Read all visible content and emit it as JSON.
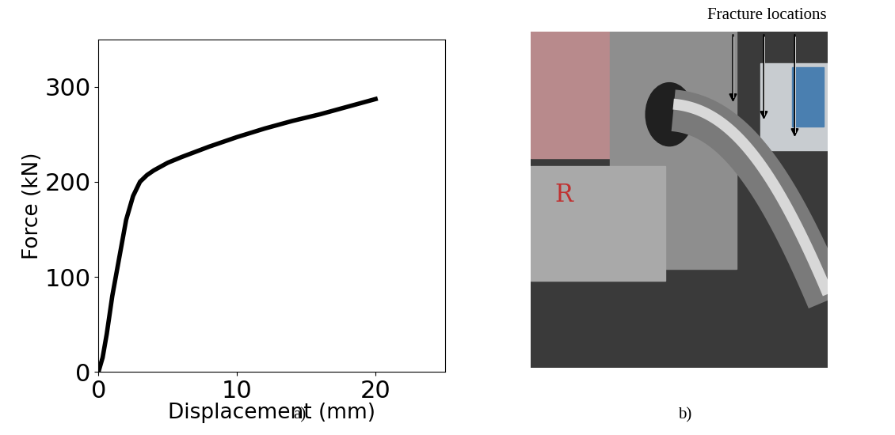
{
  "chart_data": {
    "type": "line",
    "x_label": "Displacement (mm)",
    "y_label": "Force (kN)",
    "x": [
      0,
      0.3,
      0.6,
      1.0,
      1.5,
      2.0,
      2.5,
      3.0,
      3.5,
      4.0,
      5.0,
      6.0,
      8.0,
      10.0,
      12.0,
      14.0,
      16.0,
      18.0,
      20.0
    ],
    "values": [
      0,
      15,
      40,
      80,
      120,
      160,
      185,
      200,
      207,
      212,
      220,
      226,
      237,
      247,
      256,
      264,
      271,
      279,
      287
    ],
    "color": "#000000",
    "xlim": [
      0,
      25
    ],
    "xticks": [
      0,
      10,
      20
    ],
    "ylim": [
      0,
      350
    ],
    "yticks": [
      0,
      100,
      200,
      300
    ],
    "grid": false
  },
  "panel_labels": [
    "a)",
    "b)"
  ],
  "photo": {
    "annotation": "Fracture locations",
    "arrows": 3,
    "mark": "R"
  }
}
